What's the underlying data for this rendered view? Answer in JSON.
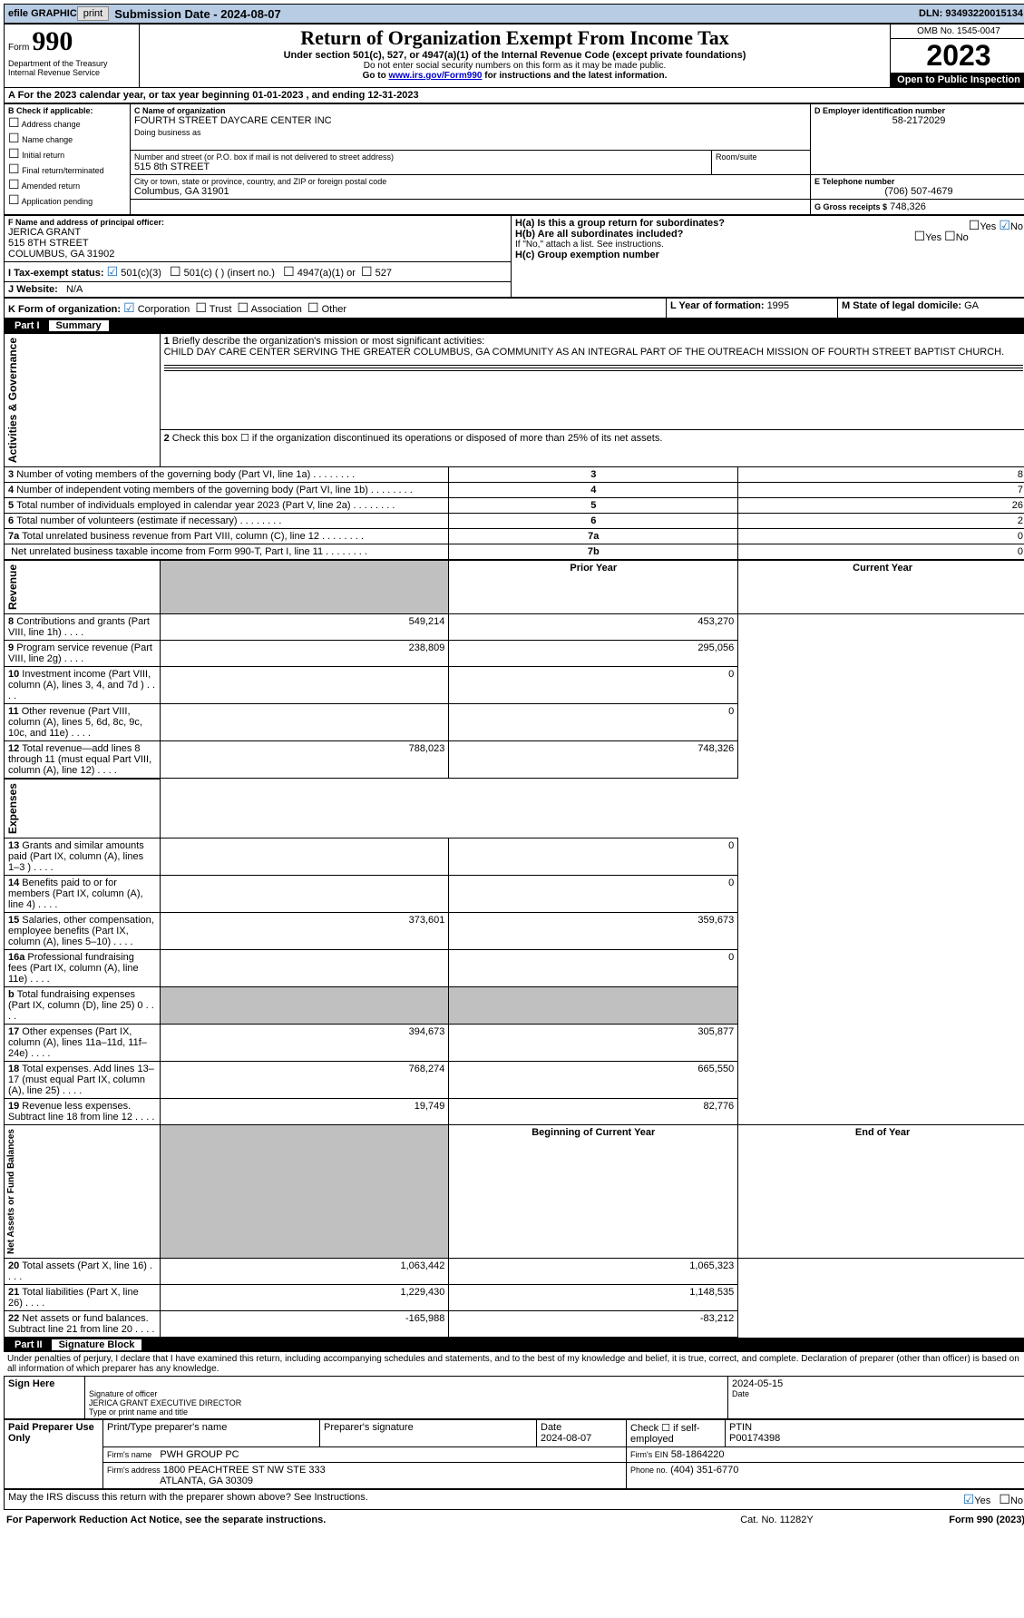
{
  "topbar": {
    "efile": "efile GRAPHIC",
    "print": "print",
    "submission_label": "Submission Date - 2024-08-07",
    "dln_label": "DLN: 93493220015134"
  },
  "header": {
    "form_label": "Form",
    "form_number": "990",
    "dept": "Department of the Treasury\nInternal Revenue Service",
    "title": "Return of Organization Exempt From Income Tax",
    "subtitle": "Under section 501(c), 527, or 4947(a)(1) of the Internal Revenue Code (except private foundations)",
    "warn": "Do not enter social security numbers on this form as it may be made public.",
    "goto": "Go to ",
    "goto_link": "www.irs.gov/Form990",
    "goto_tail": " for instructions and the latest information.",
    "omb": "OMB No. 1545-0047",
    "year": "2023",
    "open": "Open to Public Inspection"
  },
  "period": {
    "text_a": "A For the 2023 calendar year, or tax year beginning ",
    "begin": "01-01-2023",
    "mid": " , and ending ",
    "end": "12-31-2023"
  },
  "boxB": {
    "label": "B Check if applicable:",
    "opts": [
      "Address change",
      "Name change",
      "Initial return",
      "Final return/terminated",
      "Amended return",
      "Application pending"
    ]
  },
  "boxC": {
    "name_label": "C Name of organization",
    "name": "FOURTH STREET DAYCARE CENTER INC",
    "dba_label": "Doing business as",
    "street_label": "Number and street (or P.O. box if mail is not delivered to street address)",
    "room_label": "Room/suite",
    "street": "515 8th STREET",
    "city_label": "City or town, state or province, country, and ZIP or foreign postal code",
    "city": "Columbus, GA  31901"
  },
  "boxD": {
    "label": "D Employer identification number",
    "val": "58-2172029"
  },
  "boxE": {
    "label": "E Telephone number",
    "val": "(706) 507-4679"
  },
  "boxG": {
    "label": "G Gross receipts $",
    "val": "748,326"
  },
  "boxF": {
    "label": "F  Name and address of principal officer:",
    "name": "JERICA GRANT",
    "street": "515 8TH STREET",
    "city": "COLUMBUS, GA  31902"
  },
  "boxH": {
    "a_label": "H(a)  Is this a group return for subordinates?",
    "b_label": "H(b)  Are all subordinates included?",
    "b_note": "If \"No,\" attach a list. See instructions.",
    "c_label": "H(c)  Group exemption number ",
    "yes": "Yes",
    "no": "No"
  },
  "boxI": {
    "label": "I  Tax-exempt status:",
    "o1": "501(c)(3)",
    "o2": "501(c) (  ) (insert no.)",
    "o3": "4947(a)(1) or",
    "o4": "527"
  },
  "boxJ": {
    "label": "J  Website:",
    "val": "N/A"
  },
  "boxK": {
    "label": "K Form of organization:",
    "o1": "Corporation",
    "o2": "Trust",
    "o3": "Association",
    "o4": "Other"
  },
  "boxL": {
    "label": "L Year of formation: ",
    "val": "1995"
  },
  "boxM": {
    "label": "M State of legal domicile: ",
    "val": "GA"
  },
  "part1": {
    "label": "Part I",
    "title": "Summary",
    "side_ag": "Activities & Governance",
    "side_rev": "Revenue",
    "side_exp": "Expenses",
    "side_net": "Net Assets or Fund Balances",
    "line1_label": "Briefly describe the organization's mission or most significant activities:",
    "line1_text": "CHILD DAY CARE CENTER SERVING THE GREATER COLUMBUS, GA COMMUNITY AS AN INTEGRAL PART OF THE OUTREACH MISSION OF FOURTH STREET BAPTIST CHURCH.",
    "line2": "Check this box ☐ if the organization discontinued its operations or disposed of more than 25% of its net assets.",
    "rows_ag": [
      {
        "n": "3",
        "t": "Number of voting members of the governing body (Part VI, line 1a)",
        "k": "3",
        "v": "8"
      },
      {
        "n": "4",
        "t": "Number of independent voting members of the governing body (Part VI, line 1b)",
        "k": "4",
        "v": "7"
      },
      {
        "n": "5",
        "t": "Total number of individuals employed in calendar year 2023 (Part V, line 2a)",
        "k": "5",
        "v": "26"
      },
      {
        "n": "6",
        "t": "Total number of volunteers (estimate if necessary)",
        "k": "6",
        "v": "2"
      },
      {
        "n": "7a",
        "t": "Total unrelated business revenue from Part VIII, column (C), line 12",
        "k": "7a",
        "v": "0"
      },
      {
        "n": "",
        "t": "Net unrelated business taxable income from Form 990-T, Part I, line 11",
        "k": "7b",
        "v": "0"
      }
    ],
    "hdr_prior": "Prior Year",
    "hdr_curr": "Current Year",
    "rows_rev": [
      {
        "n": "8",
        "t": "Contributions and grants (Part VIII, line 1h)",
        "p": "549,214",
        "c": "453,270"
      },
      {
        "n": "9",
        "t": "Program service revenue (Part VIII, line 2g)",
        "p": "238,809",
        "c": "295,056"
      },
      {
        "n": "10",
        "t": "Investment income (Part VIII, column (A), lines 3, 4, and 7d )",
        "p": "",
        "c": "0"
      },
      {
        "n": "11",
        "t": "Other revenue (Part VIII, column (A), lines 5, 6d, 8c, 9c, 10c, and 11e)",
        "p": "",
        "c": "0"
      },
      {
        "n": "12",
        "t": "Total revenue—add lines 8 through 11 (must equal Part VIII, column (A), line 12)",
        "p": "788,023",
        "c": "748,326"
      }
    ],
    "rows_exp": [
      {
        "n": "13",
        "t": "Grants and similar amounts paid (Part IX, column (A), lines 1–3 )",
        "p": "",
        "c": "0"
      },
      {
        "n": "14",
        "t": "Benefits paid to or for members (Part IX, column (A), line 4)",
        "p": "",
        "c": "0"
      },
      {
        "n": "15",
        "t": "Salaries, other compensation, employee benefits (Part IX, column (A), lines 5–10)",
        "p": "373,601",
        "c": "359,673"
      },
      {
        "n": "16a",
        "t": "Professional fundraising fees (Part IX, column (A), line 11e)",
        "p": "",
        "c": "0"
      },
      {
        "n": "b",
        "t": "Total fundraising expenses (Part IX, column (D), line 25) 0",
        "p": "shade",
        "c": "shade"
      },
      {
        "n": "17",
        "t": "Other expenses (Part IX, column (A), lines 11a–11d, 11f–24e)",
        "p": "394,673",
        "c": "305,877"
      },
      {
        "n": "18",
        "t": "Total expenses. Add lines 13–17 (must equal Part IX, column (A), line 25)",
        "p": "768,274",
        "c": "665,550"
      },
      {
        "n": "19",
        "t": "Revenue less expenses. Subtract line 18 from line 12",
        "p": "19,749",
        "c": "82,776"
      }
    ],
    "hdr_beg": "Beginning of Current Year",
    "hdr_end": "End of Year",
    "rows_net": [
      {
        "n": "20",
        "t": "Total assets (Part X, line 16)",
        "p": "1,063,442",
        "c": "1,065,323"
      },
      {
        "n": "21",
        "t": "Total liabilities (Part X, line 26)",
        "p": "1,229,430",
        "c": "1,148,535"
      },
      {
        "n": "22",
        "t": "Net assets or fund balances. Subtract line 21 from line 20",
        "p": "-165,988",
        "c": "-83,212"
      }
    ]
  },
  "part2": {
    "label": "Part II",
    "title": "Signature Block",
    "decl": "Under penalties of perjury, I declare that I have examined this return, including accompanying schedules and statements, and to the best of my knowledge and belief, it is true, correct, and complete. Declaration of preparer (other than officer) is based on all information of which preparer has any knowledge.",
    "sign_here": "Sign Here",
    "sig_officer": "Signature of officer",
    "sig_name": "JERICA GRANT EXECUTIVE DIRECTOR",
    "sig_type": "Type or print name and title",
    "date_label": "Date",
    "date_val": "2024-05-15",
    "paid": "Paid Preparer Use Only",
    "pp_name_label": "Print/Type preparer's name",
    "pp_sig_label": "Preparer's signature",
    "pp_date": "Date\n2024-08-07",
    "pp_check": "Check ☐ if self-employed",
    "pp_ptin_label": "PTIN",
    "pp_ptin": "P00174398",
    "firm_name_label": "Firm's name",
    "firm_name": "PWH GROUP PC",
    "firm_ein_label": "Firm's EIN",
    "firm_ein": "58-1864220",
    "firm_addr_label": "Firm's address",
    "firm_addr1": "1800 PEACHTREE ST NW STE 333",
    "firm_addr2": "ATLANTA, GA  30309",
    "firm_phone_label": "Phone no.",
    "firm_phone": "(404) 351-6770",
    "discuss": "May the IRS discuss this return with the preparer shown above? See Instructions.",
    "yes": "Yes",
    "no": "No"
  },
  "footer": {
    "pra": "For Paperwork Reduction Act Notice, see the separate instructions.",
    "cat": "Cat. No. 11282Y",
    "form": "Form 990 (2023)"
  }
}
